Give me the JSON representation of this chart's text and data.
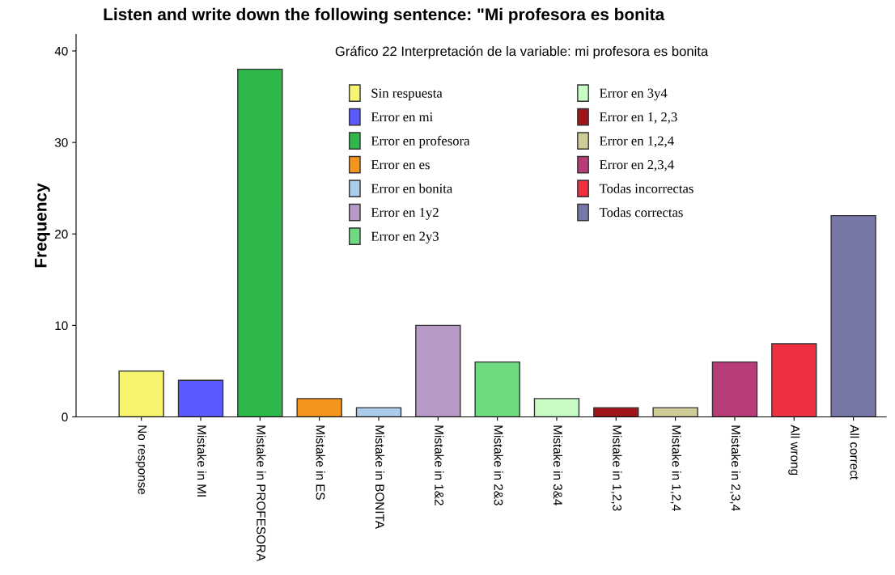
{
  "chart_data": {
    "type": "bar",
    "title": "Listen and write down the following sentence: \"Mi profesora es bonita",
    "ylabel": "Frequency",
    "categories": [
      "No response",
      "Mistake in MI",
      "Mistake in PROFESORA",
      "Mistake in ES",
      "Mistake in BONITA",
      "Mistake in 1&2",
      "Mistake in 2&3",
      "Mistake in 3&4",
      "Mistake in 1,2,3",
      "Mistake in 1,2,4",
      "Mistake in 2,3,4",
      "All wrong",
      "All correct"
    ],
    "series": [
      {
        "name": "Sin respuesta",
        "color": "#f7f56f",
        "values": [
          5,
          null,
          null,
          null,
          null,
          null,
          null,
          null,
          null,
          null,
          null,
          null,
          null
        ]
      },
      {
        "name": "Error en mi",
        "color": "#5a5aff",
        "values": [
          null,
          4,
          null,
          null,
          null,
          null,
          null,
          null,
          null,
          null,
          null,
          null,
          null
        ]
      },
      {
        "name": "Error en profesora",
        "color": "#2fb84a",
        "values": [
          null,
          null,
          38,
          null,
          null,
          null,
          null,
          null,
          null,
          null,
          null,
          null,
          null
        ]
      },
      {
        "name": "Error en es",
        "color": "#f5951e",
        "values": [
          null,
          null,
          null,
          2,
          null,
          null,
          null,
          null,
          null,
          null,
          null,
          null,
          null
        ]
      },
      {
        "name": "Error en bonita",
        "color": "#a9cdea",
        "values": [
          null,
          null,
          null,
          null,
          1,
          null,
          null,
          null,
          null,
          null,
          null,
          null,
          null
        ]
      },
      {
        "name": "Error en 1y2",
        "color": "#b89ac8",
        "values": [
          null,
          null,
          null,
          null,
          null,
          10,
          null,
          null,
          null,
          null,
          null,
          null,
          null
        ]
      },
      {
        "name": "Error en 2y3",
        "color": "#6fdb80",
        "values": [
          null,
          null,
          null,
          null,
          null,
          null,
          6,
          null,
          null,
          null,
          null,
          null,
          null
        ]
      },
      {
        "name": "Error en 3y4",
        "color": "#c7fcc5",
        "values": [
          null,
          null,
          null,
          null,
          null,
          null,
          null,
          2,
          null,
          null,
          null,
          null,
          null
        ]
      },
      {
        "name": "Error en 1, 2,3",
        "color": "#a01418",
        "values": [
          null,
          null,
          null,
          null,
          null,
          null,
          null,
          null,
          1,
          null,
          null,
          null,
          null
        ]
      },
      {
        "name": "Error en 1,2,4",
        "color": "#d0cc98",
        "values": [
          null,
          null,
          null,
          null,
          null,
          null,
          null,
          null,
          null,
          1,
          null,
          null,
          null
        ]
      },
      {
        "name": "Error en 2,3,4",
        "color": "#b83c78",
        "values": [
          null,
          null,
          null,
          null,
          null,
          null,
          null,
          null,
          null,
          null,
          6,
          null,
          null
        ]
      },
      {
        "name": "Todas incorrectas",
        "color": "#ee3040",
        "values": [
          null,
          null,
          null,
          null,
          null,
          null,
          null,
          null,
          null,
          null,
          null,
          8,
          null
        ]
      },
      {
        "name": "Todas correctas",
        "color": "#7878a8",
        "values": [
          null,
          null,
          null,
          null,
          null,
          null,
          null,
          null,
          null,
          null,
          null,
          null,
          22
        ]
      }
    ],
    "ylim": [
      0,
      41.8
    ],
    "yticks": [
      0,
      10,
      20,
      30,
      40
    ],
    "grid": false,
    "legend": "top",
    "annotations": [
      "Gráfico 22 Interpretación de la variable: mi profesora es bonita"
    ]
  }
}
